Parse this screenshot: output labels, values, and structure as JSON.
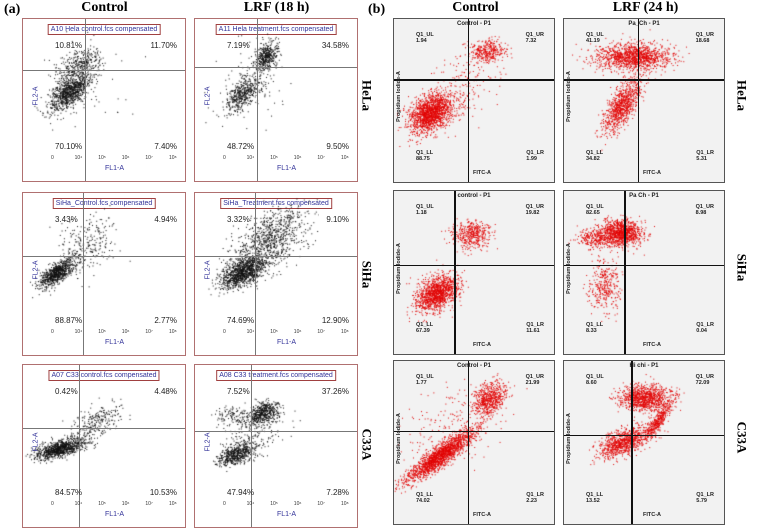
{
  "panel_a": {
    "label": "(a)",
    "columns": [
      "Control",
      "LRF (18 h)"
    ],
    "x_axis_label": "FL1-A",
    "y_axis_label": "FL2-A",
    "x_ticks": [
      "0",
      "10⁴",
      "10⁵",
      "10⁶",
      "10⁷",
      "10⁸"
    ]
  },
  "panel_b": {
    "label": "(b)",
    "columns": [
      "Control",
      "LRF (24 h)"
    ],
    "x_axis_label": "FITC-A",
    "y_axis_label": "Propidium Iodide-A",
    "rows": [
      "HeLa",
      "SiHa",
      "C33A"
    ]
  },
  "panel_a_rows": [
    "HeLa",
    "SiHa",
    "C33A"
  ],
  "colors": {
    "panel_a_dots": "#000000",
    "panel_b_dots": "#e00000",
    "panel_a_border": "#b07070"
  },
  "chart_data": [
    {
      "type": "scatter",
      "panel": "a",
      "title": "A10 Hela control.fcs compensated",
      "xlabel": "FL1-A",
      "ylabel": "FL2-A",
      "quadrants": {
        "UL": "10.81%",
        "UR": "11.70%",
        "LL": "70.10%",
        "LR": "7.40%"
      }
    },
    {
      "type": "scatter",
      "panel": "a",
      "title": "A11 Hela treatment.fcs compensated",
      "xlabel": "FL1-A",
      "ylabel": "FL2-A",
      "quadrants": {
        "UL": "7.19%",
        "UR": "34.58%",
        "LL": "48.72%",
        "LR": "9.50%"
      }
    },
    {
      "type": "scatter",
      "panel": "a",
      "title": "SiHa_Control.fcs compensated",
      "xlabel": "FL1-A",
      "ylabel": "FL2-A",
      "quadrants": {
        "UL": "3.43%",
        "UR": "4.94%",
        "LL": "88.87%",
        "LR": "2.77%"
      }
    },
    {
      "type": "scatter",
      "panel": "a",
      "title": "SiHa_Treatment.fcs compensated",
      "xlabel": "FL1-A",
      "ylabel": "FL2-A",
      "quadrants": {
        "UL": "3.32%",
        "UR": "9.10%",
        "LL": "74.69%",
        "LR": "12.90%"
      }
    },
    {
      "type": "scatter",
      "panel": "a",
      "title": "A07 C33 control.fcs compensated",
      "xlabel": "FL1-A",
      "ylabel": "FL2-A",
      "quadrants": {
        "UL": "0.42%",
        "UR": "4.48%",
        "LL": "84.57%",
        "LR": "10.53%"
      }
    },
    {
      "type": "scatter",
      "panel": "a",
      "title": "A08 C33 treatment.fcs compensated",
      "xlabel": "FL1-A",
      "ylabel": "FL2-A",
      "quadrants": {
        "UL": "7.52%",
        "UR": "37.26%",
        "LL": "47.94%",
        "LR": "7.28%"
      }
    },
    {
      "type": "scatter",
      "panel": "b",
      "title": "Control - P1",
      "xlabel": "FITC-A",
      "ylabel": "Propidium Iodide-A",
      "quadrants": {
        "UL": "1.94",
        "UR": "7.32",
        "LL": "88.75",
        "LR": "1.99"
      }
    },
    {
      "type": "scatter",
      "panel": "b",
      "title": "Pa_Ch - P1",
      "xlabel": "FITC-A",
      "ylabel": "Propidium Iodide-A",
      "quadrants": {
        "UL": "41.19",
        "UR": "18.68",
        "LL": "34.82",
        "LR": "5.31"
      }
    },
    {
      "type": "scatter",
      "panel": "b",
      "title": "control - P1",
      "xlabel": "FITC-A",
      "ylabel": "Propidium Iodide-A",
      "quadrants": {
        "UL": "1.18",
        "UR": "19.82",
        "LL": "67.39",
        "LR": "11.61"
      }
    },
    {
      "type": "scatter",
      "panel": "b",
      "title": "Pa Ch - P1",
      "xlabel": "FITC-A",
      "ylabel": "Propidium Iodide-A",
      "quadrants": {
        "UL": "82.65",
        "UR": "8.98",
        "LL": "8.33",
        "LR": "0.04"
      }
    },
    {
      "type": "scatter",
      "panel": "b",
      "title": "Control - P1",
      "xlabel": "FITC-A",
      "ylabel": "Propidium Iodide-A",
      "quadrants": {
        "UL": "1.77",
        "UR": "21.99",
        "LL": "74.02",
        "LR": "2.23"
      }
    },
    {
      "type": "scatter",
      "panel": "b",
      "title": "Hi chi - P1",
      "xlabel": "FITC-A",
      "ylabel": "Propidium Iodide-A",
      "quadrants": {
        "UL": "8.60",
        "UR": "72.09",
        "LL": "13.52",
        "LR": "5.79"
      }
    }
  ]
}
